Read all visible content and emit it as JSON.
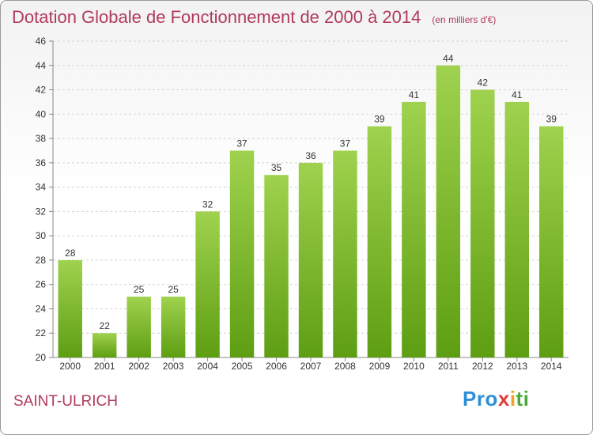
{
  "chart_data": {
    "type": "bar",
    "title": "Dotation Globale de Fonctionnement de 2000 à 2014",
    "subtitle": "(en milliers d'€)",
    "categories": [
      "2000",
      "2001",
      "2002",
      "2003",
      "2004",
      "2005",
      "2006",
      "2007",
      "2008",
      "2009",
      "2010",
      "2011",
      "2012",
      "2013",
      "2014"
    ],
    "values": [
      28,
      22,
      25,
      25,
      32,
      37,
      35,
      36,
      37,
      39,
      41,
      44,
      42,
      41,
      39
    ],
    "ylim": [
      20,
      46
    ],
    "yticks": [
      20,
      22,
      24,
      26,
      28,
      30,
      32,
      34,
      36,
      38,
      40,
      42,
      44,
      46
    ],
    "grid": true,
    "bar_color_top": "#9fd24e",
    "bar_color_bottom": "#5e9e12"
  },
  "footer": {
    "commune": "SAINT-ULRICH",
    "logo": {
      "p1": "Pro",
      "p2": "x",
      "p3": "i",
      "p4": "ti"
    }
  }
}
